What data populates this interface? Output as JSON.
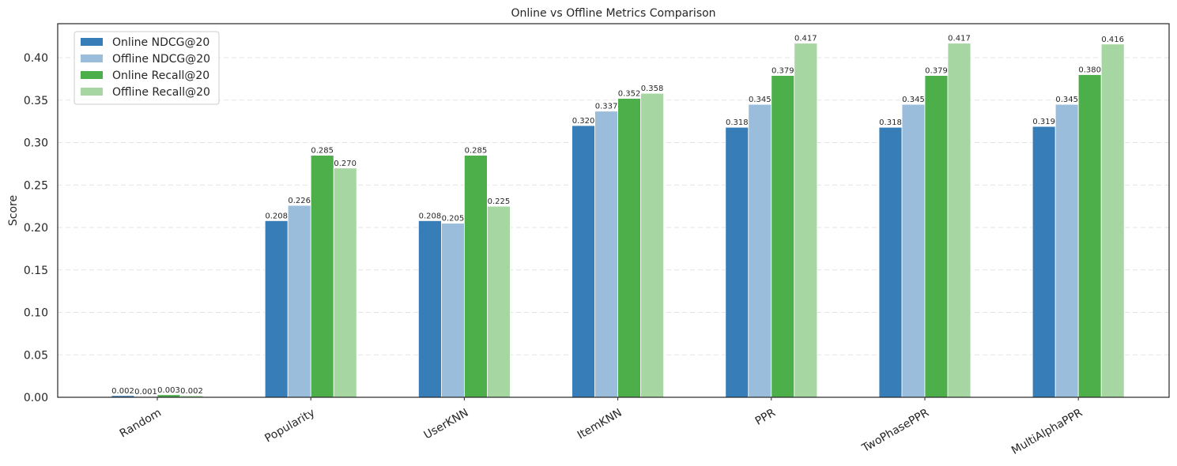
{
  "chart_data": {
    "type": "bar",
    "title": "Online vs Offline Metrics Comparison",
    "xlabel": "",
    "ylabel": "Score",
    "ylim": [
      0,
      0.44
    ],
    "yticks": [
      "0.00",
      "0.05",
      "0.10",
      "0.15",
      "0.20",
      "0.25",
      "0.30",
      "0.35",
      "0.40"
    ],
    "grid": true,
    "legend_position": "top-left",
    "categories": [
      "Random",
      "Popularity",
      "UserKNN",
      "ItemKNN",
      "PPR",
      "TwoPhasePPR",
      "MultiAlphaPPR"
    ],
    "series": [
      {
        "name": "Online NDCG@20",
        "color": "#377eb8",
        "values": [
          0.002,
          0.208,
          0.208,
          0.32,
          0.318,
          0.318,
          0.319
        ],
        "labels": [
          "0.002",
          "0.208",
          "0.208",
          "0.320",
          "0.318",
          "0.318",
          "0.319"
        ]
      },
      {
        "name": "Offline NDCG@20",
        "color": "#9bbddc",
        "values": [
          0.001,
          0.226,
          0.205,
          0.337,
          0.345,
          0.345,
          0.345
        ],
        "labels": [
          "0.001",
          "0.226",
          "0.205",
          "0.337",
          "0.345",
          "0.345",
          "0.345"
        ]
      },
      {
        "name": "Online Recall@20",
        "color": "#4daf4a",
        "values": [
          0.003,
          0.285,
          0.285,
          0.352,
          0.379,
          0.379,
          0.38
        ],
        "labels": [
          "0.003",
          "0.285",
          "0.285",
          "0.352",
          "0.379",
          "0.379",
          "0.380"
        ]
      },
      {
        "name": "Offline Recall@20",
        "color": "#a6d6a1",
        "values": [
          0.002,
          0.27,
          0.225,
          0.358,
          0.417,
          0.417,
          0.416
        ],
        "labels": [
          "0.002",
          "0.270",
          "0.225",
          "0.358",
          "0.417",
          "0.417",
          "0.416"
        ]
      }
    ]
  }
}
